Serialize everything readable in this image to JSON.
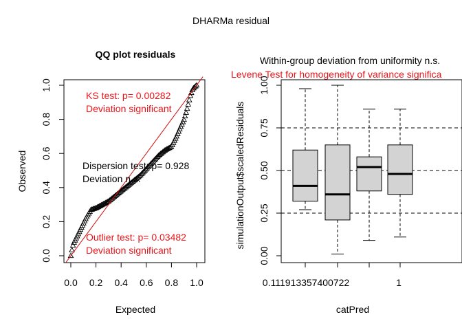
{
  "page_title": "DHARMa residual",
  "chart_data": [
    {
      "type": "scatter",
      "title": "QQ plot residuals",
      "xlabel": "Expected",
      "ylabel": "Observed",
      "xlim": [
        0,
        1
      ],
      "ylim": [
        0,
        1
      ],
      "x_ticks": [
        "0.0",
        "0.2",
        "0.4",
        "0.6",
        "0.8",
        "1.0"
      ],
      "y_ticks": [
        "0.0",
        "0.2",
        "0.4",
        "0.6",
        "0.8",
        "1.0"
      ],
      "reference_line": "y = x",
      "reference_line_color": "#d01010",
      "marker": "open-triangle",
      "quantile_curve": [
        [
          0.0,
          0.0
        ],
        [
          0.01,
          0.04
        ],
        [
          0.02,
          0.07
        ],
        [
          0.04,
          0.1
        ],
        [
          0.08,
          0.16
        ],
        [
          0.12,
          0.22
        ],
        [
          0.16,
          0.27
        ],
        [
          0.2,
          0.28
        ],
        [
          0.25,
          0.3
        ],
        [
          0.3,
          0.32
        ],
        [
          0.35,
          0.35
        ],
        [
          0.4,
          0.38
        ],
        [
          0.45,
          0.41
        ],
        [
          0.5,
          0.44
        ],
        [
          0.55,
          0.47
        ],
        [
          0.6,
          0.51
        ],
        [
          0.65,
          0.55
        ],
        [
          0.7,
          0.59
        ],
        [
          0.75,
          0.62
        ],
        [
          0.8,
          0.64
        ],
        [
          0.84,
          0.7
        ],
        [
          0.87,
          0.75
        ],
        [
          0.9,
          0.8
        ],
        [
          0.92,
          0.85
        ],
        [
          0.95,
          0.94
        ],
        [
          0.97,
          0.98
        ],
        [
          1.0,
          1.0
        ]
      ],
      "annotations": [
        {
          "lines": [
            "KS test: p= 0.00282",
            "Deviation  significant"
          ],
          "color": "#e8141a"
        },
        {
          "lines": [
            "Dispersion test: p= 0.928",
            "Deviation  n.s."
          ],
          "color": "#000000"
        },
        {
          "lines": [
            "Outlier test: p= 0.03482",
            "Deviation  significant"
          ],
          "color": "#e8141a"
        }
      ]
    },
    {
      "type": "box",
      "title_lines": [
        {
          "text": "Within-group deviation from uniformity n.s.",
          "color": "#000000"
        },
        {
          "text": "Levene Test for homogeneity of variance significa",
          "color": "#e8141a"
        }
      ],
      "xlabel": "catPred",
      "ylabel": "simulationOutput$scaledResiduals",
      "ylim": [
        0,
        1
      ],
      "y_ticks": [
        "0.00",
        "0.25",
        "0.50",
        "0.75",
        "1.00"
      ],
      "x_tick_labels": [
        "0.111913357400722",
        "1"
      ],
      "reference_lines": [
        0.25,
        0.5,
        0.75
      ],
      "box_color": "#d3d3d3",
      "boxes": [
        {
          "min": 0.27,
          "q1": 0.32,
          "median": 0.41,
          "q3": 0.62,
          "max": 0.98
        },
        {
          "min": 0.01,
          "q1": 0.21,
          "median": 0.36,
          "q3": 0.65,
          "max": 1.0
        },
        {
          "min": 0.09,
          "q1": 0.38,
          "median": 0.52,
          "q3": 0.58,
          "max": 0.86
        },
        {
          "min": 0.11,
          "q1": 0.36,
          "median": 0.48,
          "q3": 0.65,
          "max": 0.86
        }
      ]
    }
  ]
}
